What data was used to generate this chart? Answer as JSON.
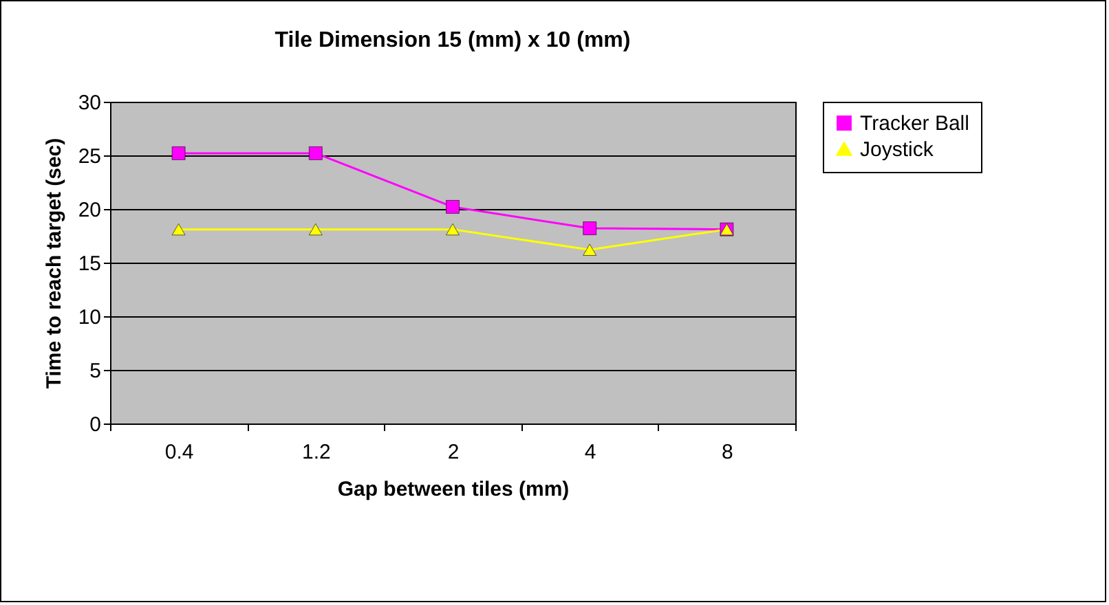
{
  "chart_data": {
    "type": "line",
    "title": "Tile Dimension 15 (mm) x 10 (mm)",
    "xlabel": "Gap between tiles (mm)",
    "ylabel": "Time to reach target (sec)",
    "categories": [
      "0.4",
      "1.2",
      "2",
      "4",
      "8"
    ],
    "series": [
      {
        "name": "Tracker Ball",
        "color": "#ff00ff",
        "marker": "square",
        "values": [
          25.2,
          25.2,
          20.2,
          18.2,
          18.1
        ]
      },
      {
        "name": "Joystick",
        "color": "#ffff00",
        "marker": "triangle",
        "values": [
          18.1,
          18.1,
          18.1,
          16.2,
          18.1
        ]
      }
    ],
    "ylim": [
      0,
      30
    ],
    "yticks": [
      0,
      5,
      10,
      15,
      20,
      25,
      30
    ],
    "grid": "y",
    "legend": "right"
  }
}
